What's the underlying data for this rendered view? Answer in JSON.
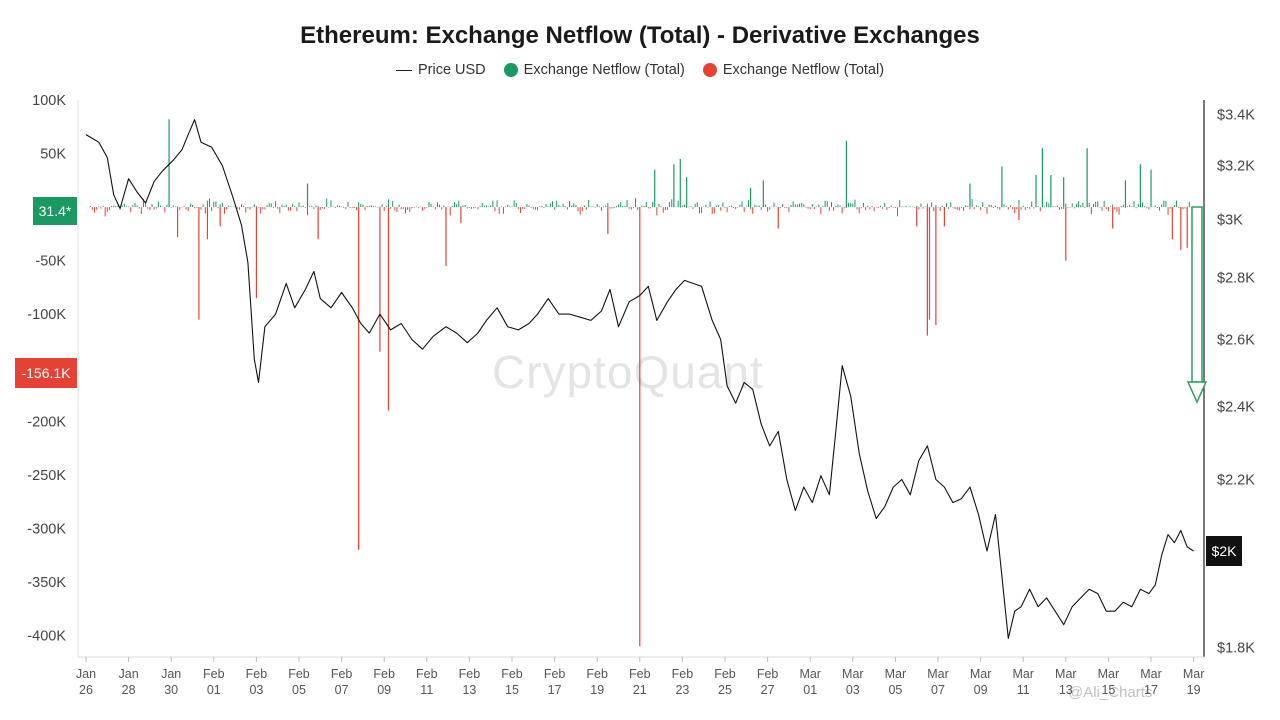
{
  "title": "Ethereum: Exchange Netflow (Total) - Derivative Exchanges",
  "legend": {
    "price": "Price USD",
    "inflow": "Exchange Netflow (Total)",
    "outflow": "Exchange Netflow (Total)"
  },
  "watermark": "CryptoQuant",
  "credit": "@Ali_Charts",
  "colors": {
    "inflow": "#1a9a62",
    "outflow": "#e34234",
    "price": "#111111",
    "arrow": "#2e9e5c"
  },
  "chart_data": {
    "type": "bar+line",
    "left_axis": {
      "ticks": [
        "100K",
        "50K",
        "0",
        "-50K",
        "-100K",
        "-150K",
        "-200K",
        "-250K",
        "-300K",
        "-350K",
        "-400K"
      ],
      "tick_values": [
        100000,
        50000,
        0,
        -50000,
        -100000,
        -150000,
        -200000,
        -250000,
        -300000,
        -350000,
        -400000
      ],
      "range": [
        -420000,
        100000
      ]
    },
    "right_axis": {
      "ticks": [
        "$3.4K",
        "$3.2K",
        "$3K",
        "$2.8K",
        "$2.6K",
        "$2.4K",
        "$2.2K",
        "$2K",
        "$1.8K"
      ],
      "tick_values": [
        3400,
        3200,
        3000,
        2800,
        2600,
        2400,
        2200,
        2000,
        1800
      ],
      "range": [
        1780,
        3460
      ],
      "scale": "log"
    },
    "x_axis": {
      "labels": [
        [
          "Jan",
          "26"
        ],
        [
          "Jan",
          "28"
        ],
        [
          "Jan",
          "30"
        ],
        [
          "Feb",
          "01"
        ],
        [
          "Feb",
          "03"
        ],
        [
          "Feb",
          "05"
        ],
        [
          "Feb",
          "07"
        ],
        [
          "Feb",
          "09"
        ],
        [
          "Feb",
          "11"
        ],
        [
          "Feb",
          "13"
        ],
        [
          "Feb",
          "15"
        ],
        [
          "Feb",
          "17"
        ],
        [
          "Feb",
          "19"
        ],
        [
          "Feb",
          "21"
        ],
        [
          "Feb",
          "23"
        ],
        [
          "Feb",
          "25"
        ],
        [
          "Feb",
          "27"
        ],
        [
          "Mar",
          "01"
        ],
        [
          "Mar",
          "03"
        ],
        [
          "Mar",
          "05"
        ],
        [
          "Mar",
          "07"
        ],
        [
          "Mar",
          "09"
        ],
        [
          "Mar",
          "11"
        ],
        [
          "Mar",
          "13"
        ],
        [
          "Mar",
          "15"
        ],
        [
          "Mar",
          "17"
        ],
        [
          "Mar",
          "19"
        ]
      ],
      "range_days": [
        0,
        52.3
      ]
    },
    "current_badges": {
      "netflow_positive": "31.4*",
      "netflow_negative": "-156.1K",
      "price": "$2K"
    },
    "netflow_spikes": [
      {
        "day": 3.9,
        "value": 82000
      },
      {
        "day": 4.3,
        "value": -28000
      },
      {
        "day": 5.3,
        "value": -105000
      },
      {
        "day": 5.7,
        "value": -30000
      },
      {
        "day": 6.3,
        "value": -18000
      },
      {
        "day": 8.0,
        "value": -85000
      },
      {
        "day": 10.4,
        "value": 22000
      },
      {
        "day": 10.9,
        "value": -30000
      },
      {
        "day": 12.8,
        "value": -320000
      },
      {
        "day": 13.8,
        "value": -135000
      },
      {
        "day": 14.2,
        "value": -190000
      },
      {
        "day": 16.9,
        "value": -55000
      },
      {
        "day": 17.6,
        "value": -15000
      },
      {
        "day": 24.5,
        "value": -25000
      },
      {
        "day": 26.0,
        "value": -410000
      },
      {
        "day": 26.7,
        "value": 35000
      },
      {
        "day": 27.6,
        "value": 40000
      },
      {
        "day": 27.9,
        "value": 45000
      },
      {
        "day": 28.2,
        "value": 28000
      },
      {
        "day": 31.2,
        "value": 18000
      },
      {
        "day": 31.8,
        "value": 25000
      },
      {
        "day": 32.5,
        "value": -20000
      },
      {
        "day": 35.7,
        "value": 62000
      },
      {
        "day": 39.0,
        "value": -18000
      },
      {
        "day": 39.5,
        "value": -120000
      },
      {
        "day": 39.6,
        "value": -105000
      },
      {
        "day": 39.9,
        "value": -110000
      },
      {
        "day": 40.3,
        "value": -18000
      },
      {
        "day": 41.5,
        "value": 22000
      },
      {
        "day": 43.0,
        "value": 38000
      },
      {
        "day": 43.8,
        "value": -12000
      },
      {
        "day": 44.6,
        "value": 30000
      },
      {
        "day": 44.9,
        "value": 55000
      },
      {
        "day": 45.3,
        "value": 30000
      },
      {
        "day": 45.9,
        "value": 28000
      },
      {
        "day": 46.0,
        "value": -50000
      },
      {
        "day": 47.0,
        "value": 55000
      },
      {
        "day": 48.2,
        "value": -20000
      },
      {
        "day": 48.8,
        "value": 25000
      },
      {
        "day": 49.5,
        "value": 40000
      },
      {
        "day": 50.0,
        "value": 35000
      },
      {
        "day": 51.0,
        "value": -30000
      },
      {
        "day": 51.4,
        "value": -40000
      },
      {
        "day": 51.7,
        "value": -38000
      }
    ],
    "price_series": [
      {
        "day": 0.0,
        "price": 3320
      },
      {
        "day": 0.6,
        "price": 3290
      },
      {
        "day": 1.0,
        "price": 3230
      },
      {
        "day": 1.3,
        "price": 3090
      },
      {
        "day": 1.6,
        "price": 3040
      },
      {
        "day": 2.0,
        "price": 3150
      },
      {
        "day": 2.4,
        "price": 3100
      },
      {
        "day": 2.8,
        "price": 3060
      },
      {
        "day": 3.2,
        "price": 3140
      },
      {
        "day": 3.6,
        "price": 3180
      },
      {
        "day": 4.1,
        "price": 3220
      },
      {
        "day": 4.5,
        "price": 3260
      },
      {
        "day": 4.8,
        "price": 3320
      },
      {
        "day": 5.1,
        "price": 3380
      },
      {
        "day": 5.4,
        "price": 3290
      },
      {
        "day": 5.9,
        "price": 3270
      },
      {
        "day": 6.4,
        "price": 3200
      },
      {
        "day": 6.9,
        "price": 3080
      },
      {
        "day": 7.3,
        "price": 2980
      },
      {
        "day": 7.6,
        "price": 2850
      },
      {
        "day": 7.9,
        "price": 2540
      },
      {
        "day": 8.1,
        "price": 2470
      },
      {
        "day": 8.4,
        "price": 2640
      },
      {
        "day": 8.9,
        "price": 2680
      },
      {
        "day": 9.4,
        "price": 2780
      },
      {
        "day": 9.8,
        "price": 2700
      },
      {
        "day": 10.3,
        "price": 2760
      },
      {
        "day": 10.7,
        "price": 2820
      },
      {
        "day": 11.0,
        "price": 2730
      },
      {
        "day": 11.5,
        "price": 2700
      },
      {
        "day": 12.0,
        "price": 2750
      },
      {
        "day": 12.5,
        "price": 2700
      },
      {
        "day": 12.9,
        "price": 2650
      },
      {
        "day": 13.3,
        "price": 2620
      },
      {
        "day": 13.8,
        "price": 2680
      },
      {
        "day": 14.3,
        "price": 2630
      },
      {
        "day": 14.8,
        "price": 2650
      },
      {
        "day": 15.3,
        "price": 2600
      },
      {
        "day": 15.8,
        "price": 2570
      },
      {
        "day": 16.3,
        "price": 2610
      },
      {
        "day": 16.9,
        "price": 2640
      },
      {
        "day": 17.4,
        "price": 2620
      },
      {
        "day": 17.9,
        "price": 2590
      },
      {
        "day": 18.4,
        "price": 2620
      },
      {
        "day": 18.8,
        "price": 2660
      },
      {
        "day": 19.3,
        "price": 2700
      },
      {
        "day": 19.8,
        "price": 2640
      },
      {
        "day": 20.3,
        "price": 2630
      },
      {
        "day": 20.8,
        "price": 2650
      },
      {
        "day": 21.2,
        "price": 2680
      },
      {
        "day": 21.7,
        "price": 2730
      },
      {
        "day": 22.2,
        "price": 2680
      },
      {
        "day": 22.7,
        "price": 2680
      },
      {
        "day": 23.2,
        "price": 2670
      },
      {
        "day": 23.7,
        "price": 2660
      },
      {
        "day": 24.2,
        "price": 2690
      },
      {
        "day": 24.6,
        "price": 2760
      },
      {
        "day": 25.0,
        "price": 2640
      },
      {
        "day": 25.5,
        "price": 2720
      },
      {
        "day": 26.0,
        "price": 2740
      },
      {
        "day": 26.4,
        "price": 2770
      },
      {
        "day": 26.8,
        "price": 2660
      },
      {
        "day": 27.3,
        "price": 2720
      },
      {
        "day": 27.7,
        "price": 2760
      },
      {
        "day": 28.1,
        "price": 2790
      },
      {
        "day": 28.5,
        "price": 2780
      },
      {
        "day": 28.9,
        "price": 2770
      },
      {
        "day": 29.4,
        "price": 2660
      },
      {
        "day": 29.8,
        "price": 2600
      },
      {
        "day": 30.1,
        "price": 2460
      },
      {
        "day": 30.5,
        "price": 2410
      },
      {
        "day": 30.9,
        "price": 2470
      },
      {
        "day": 31.3,
        "price": 2450
      },
      {
        "day": 31.7,
        "price": 2350
      },
      {
        "day": 32.1,
        "price": 2290
      },
      {
        "day": 32.5,
        "price": 2330
      },
      {
        "day": 32.9,
        "price": 2200
      },
      {
        "day": 33.3,
        "price": 2120
      },
      {
        "day": 33.7,
        "price": 2180
      },
      {
        "day": 34.1,
        "price": 2140
      },
      {
        "day": 34.5,
        "price": 2210
      },
      {
        "day": 34.9,
        "price": 2160
      },
      {
        "day": 35.2,
        "price": 2330
      },
      {
        "day": 35.5,
        "price": 2520
      },
      {
        "day": 35.9,
        "price": 2430
      },
      {
        "day": 36.3,
        "price": 2270
      },
      {
        "day": 36.7,
        "price": 2170
      },
      {
        "day": 37.1,
        "price": 2100
      },
      {
        "day": 37.5,
        "price": 2130
      },
      {
        "day": 37.9,
        "price": 2180
      },
      {
        "day": 38.3,
        "price": 2200
      },
      {
        "day": 38.7,
        "price": 2160
      },
      {
        "day": 39.1,
        "price": 2250
      },
      {
        "day": 39.5,
        "price": 2290
      },
      {
        "day": 39.9,
        "price": 2200
      },
      {
        "day": 40.3,
        "price": 2180
      },
      {
        "day": 40.7,
        "price": 2140
      },
      {
        "day": 41.1,
        "price": 2150
      },
      {
        "day": 41.5,
        "price": 2180
      },
      {
        "day": 41.9,
        "price": 2110
      },
      {
        "day": 42.3,
        "price": 2020
      },
      {
        "day": 42.7,
        "price": 2110
      },
      {
        "day": 43.0,
        "price": 1960
      },
      {
        "day": 43.3,
        "price": 1820
      },
      {
        "day": 43.6,
        "price": 1880
      },
      {
        "day": 43.9,
        "price": 1890
      },
      {
        "day": 44.3,
        "price": 1930
      },
      {
        "day": 44.7,
        "price": 1890
      },
      {
        "day": 45.1,
        "price": 1910
      },
      {
        "day": 45.5,
        "price": 1880
      },
      {
        "day": 45.9,
        "price": 1850
      },
      {
        "day": 46.3,
        "price": 1890
      },
      {
        "day": 46.7,
        "price": 1910
      },
      {
        "day": 47.1,
        "price": 1930
      },
      {
        "day": 47.5,
        "price": 1920
      },
      {
        "day": 47.9,
        "price": 1880
      },
      {
        "day": 48.3,
        "price": 1880
      },
      {
        "day": 48.7,
        "price": 1900
      },
      {
        "day": 49.1,
        "price": 1890
      },
      {
        "day": 49.5,
        "price": 1930
      },
      {
        "day": 49.9,
        "price": 1920
      },
      {
        "day": 50.2,
        "price": 1940
      },
      {
        "day": 50.5,
        "price": 2010
      },
      {
        "day": 50.8,
        "price": 2060
      },
      {
        "day": 51.1,
        "price": 2040
      },
      {
        "day": 51.4,
        "price": 2070
      },
      {
        "day": 51.7,
        "price": 2030
      },
      {
        "day": 52.0,
        "price": 2020
      }
    ]
  }
}
